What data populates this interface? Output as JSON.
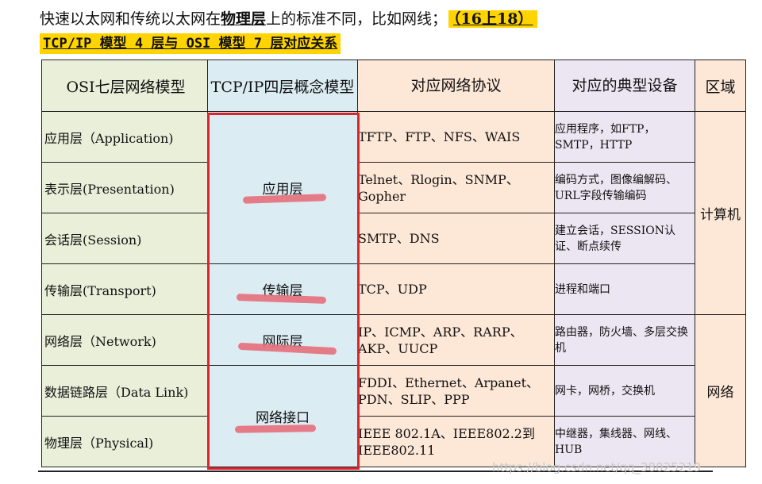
{
  "intro": {
    "prefix": "快速以太网和传统以太网在",
    "emphasis": "物理层",
    "suffix": "上的标准不同，比如网线；",
    "reference": "（16上18）"
  },
  "subtitle": "TCP/IP 模型 4 层与 OSI 模型 7 层对应关系",
  "table": {
    "headers": [
      "OSI七层网络模型",
      "TCP/IP四层概念模型",
      "对应网络协议",
      "对应的典型设备",
      "区域"
    ],
    "osi_layers": [
      "应用层（Application)",
      "表示层(Presentation)",
      "会话层(Session)",
      "传输层(Transport)",
      "网络层（Network)",
      "数据链路层（Data  Link)",
      "物理层（Physical)"
    ],
    "tcpip_layers": [
      "应用层",
      "传输层",
      "网际层",
      "网络接口"
    ],
    "protocols": [
      "TFTP、FTP、NFS、WAIS",
      "Telnet、Rlogin、SNMP、Gopher",
      "SMTP、DNS",
      "TCP、UDP",
      "IP、ICMP、ARP、RARP、AKP、UUCP",
      "FDDI、Ethernet、Arpanet、PDN、SLIP、PPP",
      "IEEE  802.1A、IEEE802.2到IEEE802.11"
    ],
    "devices": [
      "应用程序，如FTP，SMTP，HTTP",
      "编码方式，图像编解码、URL字段传输编码",
      "建立会话，SESSION认证、断点续传",
      "进程和端口",
      "路由器，防火墙、多层交换机",
      "网卡，网桥，交换机",
      "中继器，集线器、网线、HUB"
    ],
    "regions": [
      "计算机",
      "网络"
    ]
  },
  "watermark": "https://blog.csdn.net/qq_38025219"
}
